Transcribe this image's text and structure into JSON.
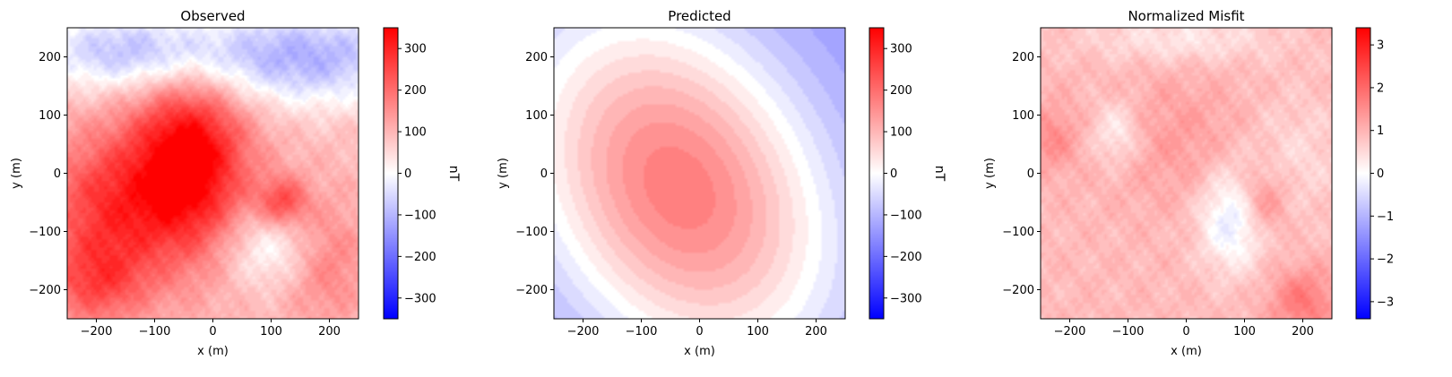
{
  "figure": {
    "panels": [
      {
        "title": "Observed",
        "xlabel": "x (m)",
        "ylabel": "y (m)",
        "cbar_label": "nT"
      },
      {
        "title": "Predicted",
        "xlabel": "x (m)",
        "ylabel": "y (m)",
        "cbar_label": "nT"
      },
      {
        "title": "Normalized Misfit",
        "xlabel": "x (m)",
        "ylabel": "y (m)",
        "cbar_label": ""
      }
    ]
  },
  "chart_data": [
    {
      "type": "heatmap",
      "title": "Observed",
      "xlabel": "x (m)",
      "ylabel": "y (m)",
      "xlim": [
        -250,
        250
      ],
      "ylim": [
        -250,
        250
      ],
      "xticks": [
        -200,
        -100,
        0,
        100,
        200
      ],
      "yticks": [
        -200,
        -100,
        0,
        100,
        200
      ],
      "colormap": "bwr",
      "colorbar": {
        "label": "nT",
        "range": [
          -350,
          350
        ],
        "ticks": [
          -300,
          -200,
          -100,
          0,
          100,
          200,
          300
        ]
      },
      "grid": false,
      "features": {
        "background": 95,
        "blobs": [
          {
            "x": -40,
            "y": 20,
            "sx": 70,
            "sy": 110,
            "a": 280
          },
          {
            "x": -180,
            "y": -60,
            "sx": 80,
            "sy": 90,
            "a": 170
          },
          {
            "x": -200,
            "y": -190,
            "sx": 60,
            "sy": 50,
            "a": 120
          },
          {
            "x": 120,
            "y": -50,
            "sx": 30,
            "sy": 30,
            "a": 150
          },
          {
            "x": 190,
            "y": -150,
            "sx": 50,
            "sy": 70,
            "a": 90
          },
          {
            "x": 160,
            "y": 200,
            "sx": 150,
            "sy": 60,
            "a": -200
          },
          {
            "x": -150,
            "y": 210,
            "sx": 120,
            "sy": 50,
            "a": -170
          },
          {
            "x": 100,
            "y": -130,
            "sx": 60,
            "sy": 50,
            "a": -110
          }
        ]
      }
    },
    {
      "type": "heatmap",
      "title": "Predicted",
      "xlabel": "x (m)",
      "ylabel": "y (m)",
      "xlim": [
        -250,
        250
      ],
      "ylim": [
        -250,
        250
      ],
      "xticks": [
        -200,
        -100,
        0,
        100,
        200
      ],
      "yticks": [
        -200,
        -100,
        0,
        100,
        200
      ],
      "colormap": "bwr",
      "colorbar": {
        "label": "nT",
        "range": [
          -350,
          350
        ],
        "ticks": [
          -300,
          -200,
          -100,
          0,
          100,
          200,
          300
        ]
      },
      "grid": false,
      "features": {
        "background": -150,
        "blobs": [
          {
            "x": -35,
            "y": -25,
            "sx": 165,
            "sy": 230,
            "a": 330,
            "rot": 0.55
          }
        ]
      }
    },
    {
      "type": "heatmap",
      "title": "Normalized Misfit",
      "xlabel": "x (m)",
      "ylabel": "y (m)",
      "xlim": [
        -250,
        250
      ],
      "ylim": [
        -250,
        250
      ],
      "xticks": [
        -200,
        -100,
        0,
        100,
        200
      ],
      "yticks": [
        -200,
        -100,
        0,
        100,
        200
      ],
      "colormap": "bwr",
      "colorbar": {
        "label": "",
        "range": [
          -3.4,
          3.4
        ],
        "ticks": [
          -3,
          -2,
          -1,
          0,
          1,
          2,
          3
        ]
      },
      "grid": false,
      "features": {
        "background": 0.9,
        "blobs": [
          {
            "x": -20,
            "y": 60,
            "sx": 90,
            "sy": 80,
            "a": 0.4
          },
          {
            "x": 80,
            "y": -80,
            "sx": 40,
            "sy": 60,
            "a": -1.3
          },
          {
            "x": 130,
            "y": -50,
            "sx": 30,
            "sy": 40,
            "a": 0.9
          },
          {
            "x": 200,
            "y": -220,
            "sx": 40,
            "sy": 40,
            "a": 0.9
          },
          {
            "x": -120,
            "y": 70,
            "sx": 30,
            "sy": 40,
            "a": -0.8
          },
          {
            "x": -10,
            "y": 230,
            "sx": 120,
            "sy": 30,
            "a": -0.6
          },
          {
            "x": -230,
            "y": 60,
            "sx": 30,
            "sy": 40,
            "a": 0.6
          },
          {
            "x": 190,
            "y": 30,
            "sx": 60,
            "sy": 80,
            "a": -0.4
          }
        ]
      }
    }
  ]
}
